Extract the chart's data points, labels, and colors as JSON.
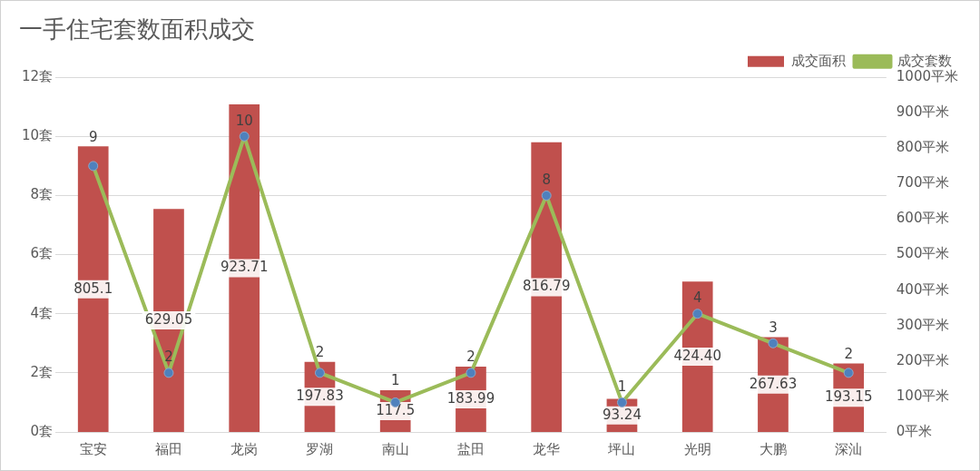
{
  "chart_data": {
    "type": "bar",
    "title": "一手住宅套数面积成交",
    "categories": [
      "宝安",
      "福田",
      "龙岗",
      "罗湖",
      "南山",
      "盐田",
      "龙华",
      "坪山",
      "光明",
      "大鹏",
      "深汕"
    ],
    "series": [
      {
        "name": "成交面积",
        "axis": "y2",
        "color": "#c0504d",
        "values": [
          805.1,
          629.05,
          923.71,
          197.83,
          117.5,
          183.99,
          816.79,
          93.24,
          424.4,
          267.63,
          193.15
        ],
        "value_labels": [
          "805.1",
          "629.05",
          "923.71",
          "197.83",
          "117.5",
          "183.99",
          "816.79",
          "93.24",
          "424.40",
          "267.63",
          "193.15"
        ]
      },
      {
        "name": "成交套数",
        "type": "line",
        "color": "#9bbb59",
        "values": [
          9,
          2,
          10,
          2,
          1,
          2,
          8,
          1,
          4,
          3,
          2
        ],
        "value_labels": [
          "9",
          "2",
          "10",
          "2",
          "1",
          "2",
          "8",
          "1",
          "4",
          "3",
          "2"
        ]
      }
    ],
    "ylim": [
      0,
      12
    ],
    "yticks": [
      {
        "value": 0,
        "label": "0套"
      },
      {
        "value": 2,
        "label": "2套"
      },
      {
        "value": 4,
        "label": "4套"
      },
      {
        "value": 6,
        "label": "6套"
      },
      {
        "value": 8,
        "label": "8套"
      },
      {
        "value": 10,
        "label": "10套"
      },
      {
        "value": 12,
        "label": "12套"
      }
    ],
    "y2lim": [
      0,
      1000
    ],
    "y2ticks": [
      {
        "value": 0,
        "label": "0平米"
      },
      {
        "value": 100,
        "label": "100平米"
      },
      {
        "value": 200,
        "label": "200平米"
      },
      {
        "value": 300,
        "label": "300平米"
      },
      {
        "value": 400,
        "label": "400平米"
      },
      {
        "value": 500,
        "label": "500平米"
      },
      {
        "value": 600,
        "label": "600平米"
      },
      {
        "value": 700,
        "label": "700平米"
      },
      {
        "value": 800,
        "label": "800平米"
      },
      {
        "value": 900,
        "label": "900平米"
      },
      {
        "value": 1000,
        "label": "1000平米"
      }
    ],
    "grid": "y",
    "legend": "top right",
    "marker": "circle",
    "line_style": "solid"
  }
}
